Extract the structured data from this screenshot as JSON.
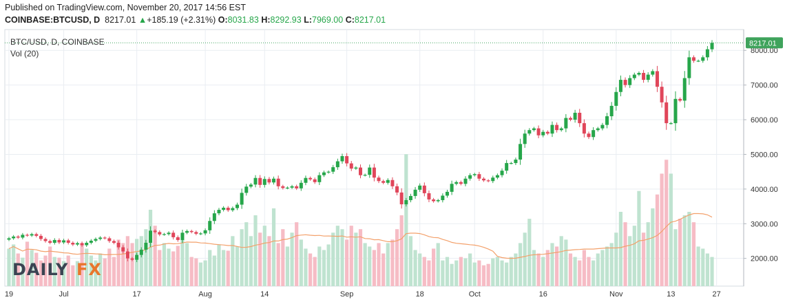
{
  "header": {
    "published": "Published on TradingView.com, November 20, 2017 14:56 EST",
    "symbol": "COINBASE:BTCUSD, D",
    "last": "8217.01",
    "change": "+185.19 (+2.31%)",
    "o_label": "O:",
    "o_val": "8031.83",
    "h_label": "H:",
    "h_val": "8292.93",
    "l_label": "L:",
    "l_val": "7969.00",
    "c_label": "C:",
    "c_val": "8217.01"
  },
  "legend": {
    "title": "BTC/USD, D, COINBASE",
    "volume": "Vol (20)"
  },
  "logo": {
    "part1": "DAILY",
    "part2": "FX"
  },
  "colors": {
    "up": "#26a64a",
    "down": "#e0465a",
    "vol_up": "#bfe3d0",
    "vol_down": "#f6bcc5",
    "ma": "#f3a06a",
    "grid": "#e9edf2",
    "price_badge": "#3fa35c"
  },
  "chart_data": {
    "type": "candlestick",
    "price_axis": {
      "min": 1200,
      "max": 8600,
      "ticks": [
        2000,
        3000,
        4000,
        5000,
        6000,
        7000,
        8000
      ]
    },
    "price_tick_labels": [
      "2000.00",
      "3000.00",
      "4000.00",
      "5000.00",
      "6000.00",
      "7000.00",
      "8000.00"
    ],
    "last_price": 8217.01,
    "last_price_label": "8217.01",
    "x_ticks": [
      {
        "i": 0,
        "label": "19"
      },
      {
        "i": 12,
        "label": "Jul"
      },
      {
        "i": 28,
        "label": "17"
      },
      {
        "i": 43,
        "label": "Aug"
      },
      {
        "i": 56,
        "label": "14"
      },
      {
        "i": 74,
        "label": "Sep"
      },
      {
        "i": 90,
        "label": "18"
      },
      {
        "i": 102,
        "label": "Oct"
      },
      {
        "i": 117,
        "label": "16"
      },
      {
        "i": 133,
        "label": "Nov"
      },
      {
        "i": 145,
        "label": "13"
      },
      {
        "i": 155,
        "label": "27"
      }
    ],
    "closes": [
      2580,
      2630,
      2600,
      2680,
      2660,
      2700,
      2650,
      2560,
      2500,
      2450,
      2530,
      2460,
      2520,
      2450,
      2400,
      2440,
      2380,
      2450,
      2510,
      2560,
      2600,
      2580,
      2500,
      2450,
      2320,
      2200,
      2000,
      1960,
      2100,
      2250,
      2450,
      2800,
      2760,
      2690,
      2700,
      2740,
      2610,
      2530,
      2740,
      2790,
      2760,
      2710,
      2720,
      2810,
      3080,
      3300,
      3400,
      3460,
      3390,
      3450,
      3550,
      3890,
      4070,
      4130,
      4320,
      4120,
      4290,
      4190,
      4300,
      4080,
      4030,
      4040,
      4080,
      4020,
      4180,
      4320,
      4280,
      4200,
      4400,
      4480,
      4500,
      4630,
      4800,
      4950,
      4740,
      4590,
      4620,
      4400,
      4410,
      4620,
      4330,
      4230,
      4180,
      4260,
      4080,
      3900,
      3560,
      3680,
      3800,
      3980,
      4100,
      3880,
      3700,
      3650,
      3680,
      3810,
      3920,
      4150,
      4200,
      4150,
      4300,
      4400,
      4430,
      4300,
      4250,
      4230,
      4330,
      4400,
      4530,
      4750,
      4750,
      4850,
      5300,
      5600,
      5700,
      5750,
      5550,
      5650,
      5600,
      5850,
      5700,
      5750,
      6050,
      6000,
      6200,
      5900,
      5600,
      5500,
      5700,
      5750,
      5850,
      6100,
      6400,
      6800,
      7150,
      7000,
      7200,
      7300,
      7350,
      7150,
      7300,
      7400,
      6950,
      6500,
      5900,
      5900,
      6600,
      6550,
      7200,
      7800,
      7700,
      7700,
      7800,
      8031.83,
      8217.01
    ],
    "volumes": [
      1820,
      1880,
      1750,
      1690,
      1920,
      1800,
      1760,
      1650,
      1720,
      1850,
      1700,
      1690,
      1640,
      1720,
      1580,
      1640,
      1900,
      1820,
      1720,
      1650,
      1750,
      1680,
      1820,
      1700,
      1950,
      1900,
      2000,
      1900,
      1960,
      2000,
      2100,
      2380,
      2150,
      1800,
      1900,
      1820,
      1780,
      1860,
      1950,
      1900,
      1700,
      1680,
      1620,
      1650,
      1800,
      1720,
      1880,
      1800,
      1790,
      2000,
      1850,
      2100,
      2200,
      2000,
      2300,
      2050,
      2150,
      2000,
      2400,
      1900,
      2100,
      1850,
      2050,
      2200,
      1950,
      1820,
      1750,
      1700,
      1850,
      1800,
      1880,
      2050,
      2150,
      2100,
      1950,
      2150,
      2050,
      2100,
      1900,
      1850,
      1800,
      1900,
      1750,
      1900,
      1950,
      2100,
      2300,
      3180,
      2000,
      1800,
      1750,
      1700,
      1650,
      1820,
      1900,
      1650,
      1700,
      1600,
      1650,
      1700,
      1680,
      1750,
      1620,
      1650,
      1580,
      1600,
      1680,
      1700,
      1650,
      1620,
      1700,
      1750,
      1900,
      2050,
      2250,
      1800,
      1750,
      1700,
      1800,
      1900,
      1850,
      2000,
      1950,
      1750,
      1700,
      1650,
      1800,
      1700,
      1650,
      1750,
      1800,
      1850,
      1900,
      2050,
      2350,
      2200,
      2000,
      2150,
      2650,
      2050,
      2200,
      2400,
      2600,
      2900,
      3100,
      2900,
      2100,
      2250,
      2300,
      2350,
      2200,
      1850,
      1820,
      1750,
      1700
    ]
  }
}
